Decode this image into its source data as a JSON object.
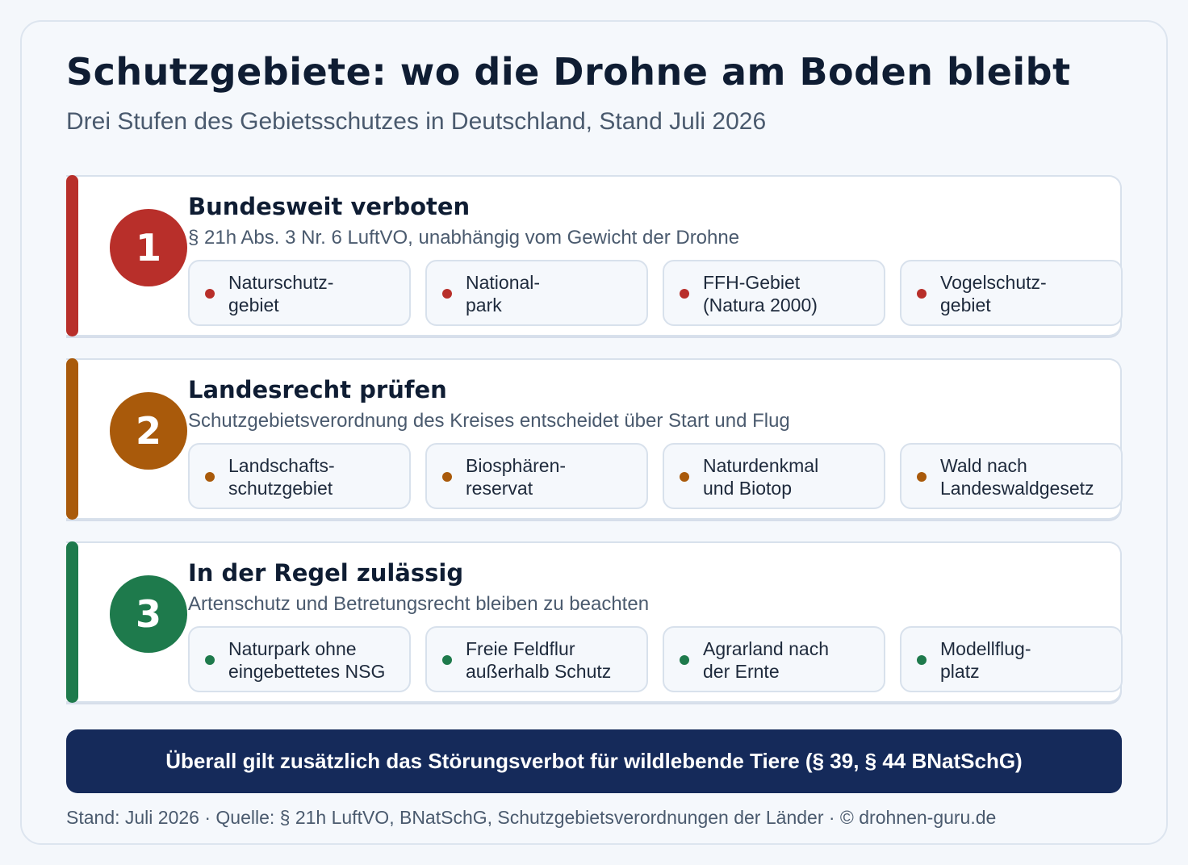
{
  "title": "Schutzgebiete: wo die Drohne am Boden bleibt",
  "subtitle": "Drei Stufen des Gebietsschutzes in Deutschland, Stand Juli 2026",
  "tiers": [
    {
      "number": "1",
      "heading": "Bundesweit verboten",
      "description": "§ 21h Abs. 3 Nr. 6 LuftVO, unabhängig vom Gewicht der Drohne",
      "color": "#b82f2a",
      "items": [
        "Naturschutz-\ngebiet",
        "National-\npark",
        "FFH-Gebiet\n(Natura 2000)",
        "Vogelschutz-\ngebiet"
      ]
    },
    {
      "number": "2",
      "heading": "Landesrecht prüfen",
      "description": "Schutzgebietsverordnung des Kreises entscheidet über Start und Flug",
      "color": "#a95a0b",
      "items": [
        "Landschafts-\nschutzgebiet",
        "Biosphären-\nreservat",
        "Naturdenkmal\nund Biotop",
        "Wald nach\nLandeswaldgesetz"
      ]
    },
    {
      "number": "3",
      "heading": "In der Regel zulässig",
      "description": "Artenschutz und Betretungsrecht bleiben zu beachten",
      "color": "#1e7a4c",
      "items": [
        "Naturpark ohne\neingebettetes NSG",
        "Freie Feldflur\naußerhalb Schutz",
        "Agrarland nach\nder Ernte",
        "Modellflug-\nplatz"
      ]
    }
  ],
  "notice": "Überall gilt zusätzlich das Störungsverbot für wildlebende Tiere (§ 39, § 44 BNatSchG)",
  "source": "Stand: Juli 2026 · Quelle: § 21h LuftVO, BNatSchG, Schutzgebietsverordnungen der Länder · © drohnen-guru.de",
  "notice_color": "#152a5a"
}
